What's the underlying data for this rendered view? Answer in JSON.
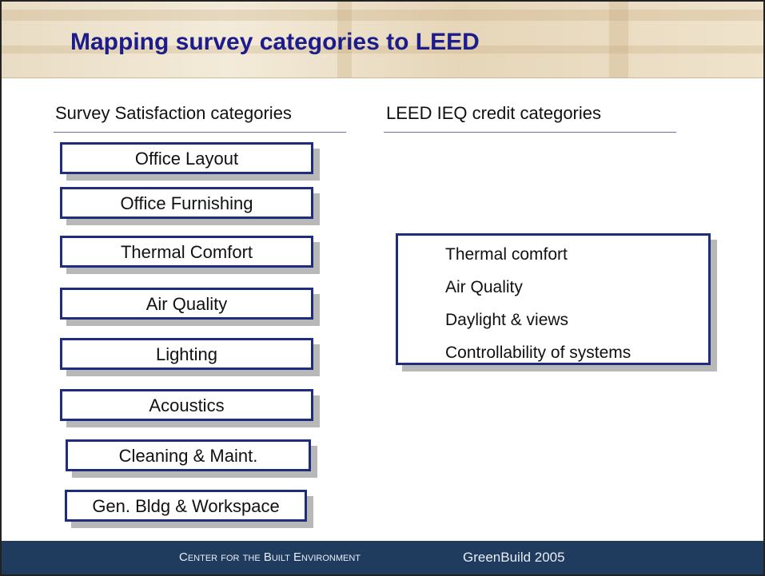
{
  "header": {
    "title": "Mapping survey categories to LEED"
  },
  "survey": {
    "heading": "Survey Satisfaction categories",
    "items": [
      "Office Layout",
      "Office Furnishing",
      "Thermal Comfort",
      "Air Quality",
      "Lighting",
      "Acoustics",
      "Cleaning & Maint.",
      "Gen. Bldg & Workspace"
    ]
  },
  "leed": {
    "heading": "LEED IEQ credit categories",
    "items": [
      "Thermal comfort",
      "Air Quality",
      "Daylight & views",
      "Controllability of systems"
    ]
  },
  "footer": {
    "organization": "Center for the Built Environment",
    "event": "GreenBuild 2005"
  }
}
